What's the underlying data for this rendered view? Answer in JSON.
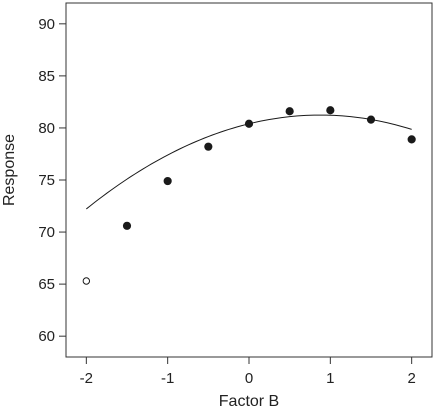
{
  "chart_data": {
    "type": "scatter",
    "title": "",
    "xlabel": "Factor B",
    "ylabel": "Response",
    "xlim": [
      -2.25,
      2.25
    ],
    "ylim": [
      58,
      92
    ],
    "x_ticks": [
      "-2",
      "-1",
      "0",
      "1",
      "2"
    ],
    "y_ticks": [
      "60",
      "65",
      "70",
      "75",
      "80",
      "85",
      "90"
    ],
    "grid": false,
    "legend": "none",
    "series": [
      {
        "points": [
          {
            "x": -2.0,
            "y": 65.3,
            "marker": "open"
          },
          {
            "x": -1.5,
            "y": 70.6,
            "marker": "filled"
          },
          {
            "x": -1.0,
            "y": 74.9,
            "marker": "filled"
          },
          {
            "x": -0.5,
            "y": 78.2,
            "marker": "filled"
          },
          {
            "x": 0.0,
            "y": 80.4,
            "marker": "filled"
          },
          {
            "x": 0.5,
            "y": 81.6,
            "marker": "filled"
          },
          {
            "x": 1.0,
            "y": 81.7,
            "marker": "filled"
          },
          {
            "x": 1.5,
            "y": 80.8,
            "marker": "filled"
          },
          {
            "x": 2.0,
            "y": 78.9,
            "marker": "filled"
          }
        ]
      }
    ],
    "fit_curve": {
      "type": "quadratic",
      "a": -1.09,
      "b": 1.91,
      "c": 80.4
    },
    "colors": {
      "points": "#1a1a1a",
      "curve": "#1a1a1a",
      "axis": "#333333"
    }
  }
}
